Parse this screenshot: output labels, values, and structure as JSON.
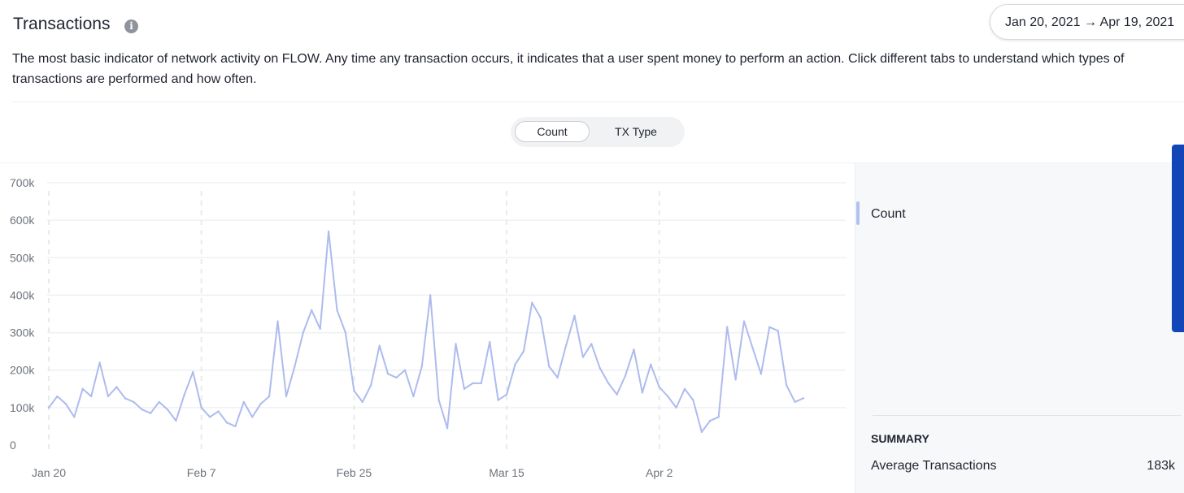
{
  "header": {
    "title": "Transactions",
    "info_icon": "info-icon",
    "date_range": "Jan 20, 2021 → Apr 19, 2021",
    "description": "The most basic indicator of network activity on FLOW. Any time any transaction occurs, it indicates that a user spent money to perform an action. Click different tabs to understand which types of transactions are performed and how often."
  },
  "tabs": [
    {
      "label": "Count",
      "active": true
    },
    {
      "label": "TX Type",
      "active": false
    }
  ],
  "legend": {
    "label": "Count",
    "color": "#b4c0ee"
  },
  "summary": {
    "heading": "SUMMARY",
    "average_label": "Average Transactions",
    "average_value": "183k"
  },
  "chart_data": {
    "type": "line",
    "title": "",
    "xlabel": "",
    "ylabel": "",
    "ylim": [
      0,
      700000
    ],
    "y_ticks": [
      {
        "value": 0,
        "label": "0"
      },
      {
        "value": 100000,
        "label": "100k"
      },
      {
        "value": 200000,
        "label": "200k"
      },
      {
        "value": 300000,
        "label": "300k"
      },
      {
        "value": 400000,
        "label": "400k"
      },
      {
        "value": 500000,
        "label": "500k"
      },
      {
        "value": 600000,
        "label": "600k"
      },
      {
        "value": 700000,
        "label": "700k"
      }
    ],
    "x_ticks": [
      {
        "index": 0,
        "label": "Jan 20"
      },
      {
        "index": 18,
        "label": "Feb 7"
      },
      {
        "index": 36,
        "label": "Feb 25"
      },
      {
        "index": 54,
        "label": "Mar 15"
      },
      {
        "index": 72,
        "label": "Apr 2"
      }
    ],
    "grid": true,
    "color": "#aebbee",
    "series": [
      {
        "values": [
          100000,
          130000,
          110000,
          75000,
          150000,
          130000,
          220000,
          130000,
          155000,
          125000,
          115000,
          95000,
          85000,
          115000,
          95000,
          65000,
          135000,
          195000,
          100000,
          75000,
          90000,
          60000,
          50000,
          115000,
          75000,
          110000,
          130000,
          330000,
          130000,
          210000,
          300000,
          360000,
          310000,
          570000,
          360000,
          300000,
          145000,
          115000,
          160000,
          265000,
          190000,
          180000,
          200000,
          130000,
          210000,
          400000,
          120000,
          45000,
          270000,
          150000,
          165000,
          165000,
          275000,
          120000,
          135000,
          215000,
          250000,
          380000,
          340000,
          210000,
          180000,
          265000,
          345000,
          235000,
          270000,
          205000,
          165000,
          135000,
          185000,
          255000,
          140000,
          215000,
          155000,
          130000,
          100000,
          150000,
          120000,
          35000,
          65000,
          75000,
          315000,
          175000,
          330000,
          260000,
          190000,
          315000,
          305000,
          160000,
          115000,
          125000
        ]
      }
    ]
  }
}
